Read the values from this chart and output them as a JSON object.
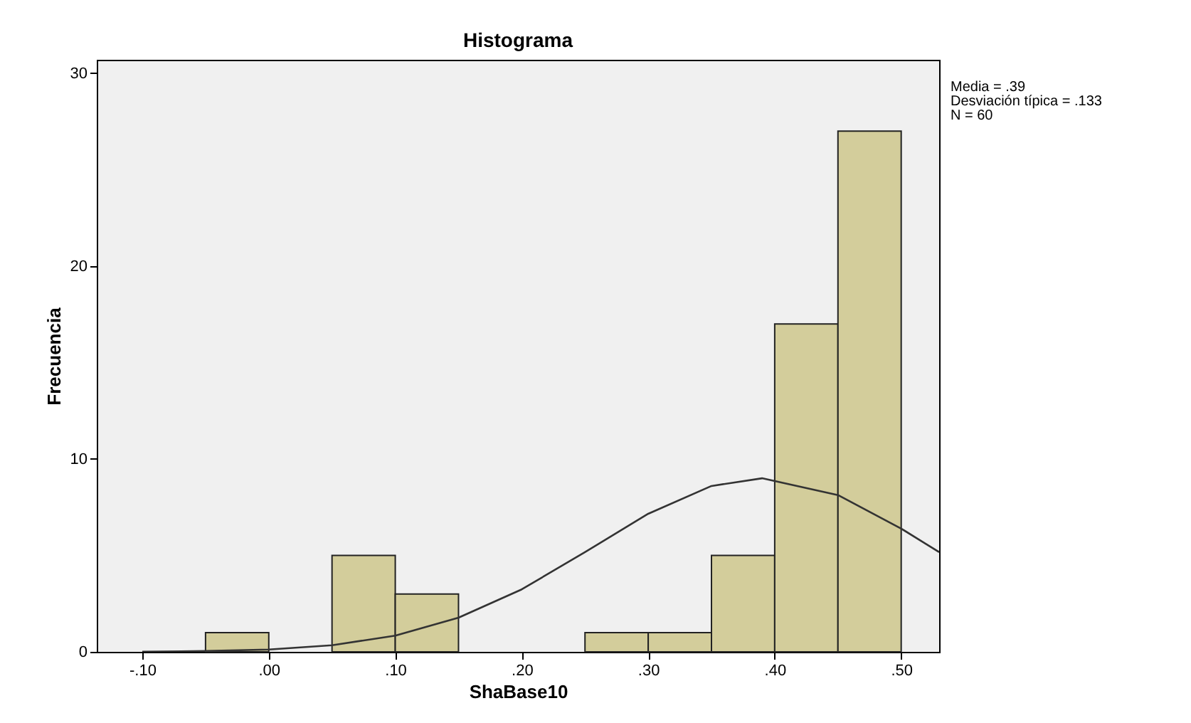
{
  "chart_data": {
    "type": "histogram",
    "title": "Histograma",
    "xlabel": "ShaBase10",
    "ylabel": "Frecuencia",
    "bins": [
      -0.05,
      0.0,
      0.05,
      0.1,
      0.15,
      0.2,
      0.25,
      0.3,
      0.35,
      0.4,
      0.45,
      0.5
    ],
    "values": [
      1,
      0,
      5,
      3,
      0,
      0,
      1,
      1,
      5,
      17,
      27
    ],
    "color": "#d3cd9b",
    "series": [
      {
        "type": "line",
        "color": "#333333",
        "x": [
          -0.1,
          -0.05,
          0.0,
          0.05,
          0.1,
          0.15,
          0.2,
          0.25,
          0.3,
          0.35,
          0.39,
          0.45,
          0.5,
          0.53
        ],
        "values": [
          0.01,
          0.04,
          0.12,
          0.34,
          0.84,
          1.77,
          3.24,
          5.17,
          7.16,
          8.6,
          9.0,
          8.13,
          6.39,
          5.17
        ]
      }
    ],
    "xlim": [
      -0.136,
      0.53
    ],
    "xticks": [
      {
        "value": -0.1,
        "label": "-.10"
      },
      {
        "value": 0.0,
        "label": ".00"
      },
      {
        "value": 0.1,
        "label": ".10"
      },
      {
        "value": 0.2,
        "label": ".20"
      },
      {
        "value": 0.3,
        "label": ".30"
      },
      {
        "value": 0.4,
        "label": ".40"
      },
      {
        "value": 0.5,
        "label": ".50"
      }
    ],
    "ylim": [
      0,
      30.7
    ],
    "yticks": [
      0,
      10,
      20,
      30
    ],
    "annotations": [
      "Media = .39",
      "Desviación típica = .133",
      "N = 60"
    ]
  }
}
